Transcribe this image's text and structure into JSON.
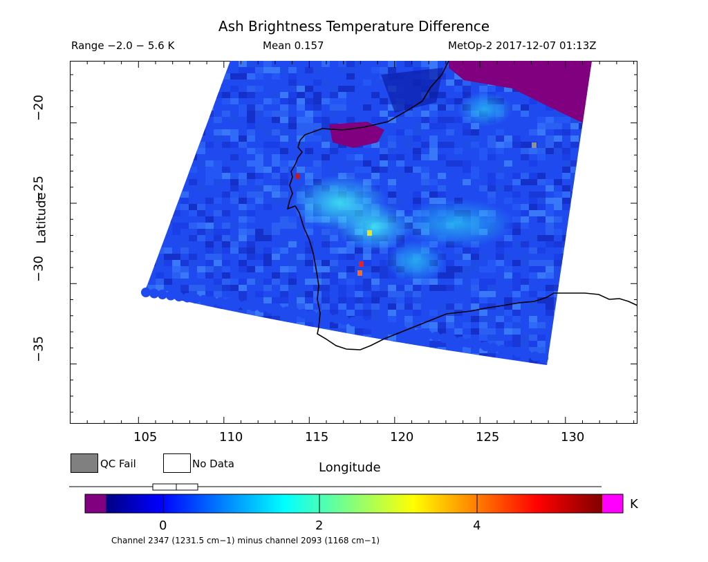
{
  "header": {
    "title": "Ash Brightness Temperature Difference",
    "range": "Range −2.0 − 5.6 K",
    "mean": "Mean 0.157",
    "satellite": "MetOp-2 2017-12-07 01:13Z"
  },
  "axes": {
    "x_title": "Longitude",
    "y_title": "Latitude",
    "x_ticks": [
      "105",
      "110",
      "115",
      "120",
      "125",
      "130"
    ],
    "y_ticks": [
      "−20",
      "−25",
      "−30",
      "−35"
    ]
  },
  "legend": {
    "qc_fail": "QC Fail",
    "no_data": "No Data"
  },
  "colorbar": {
    "ticks": [
      "0",
      "2",
      "4"
    ],
    "unit": "K",
    "caption": "Channel 2347 (1231.5 cm−1) minus channel 2093 (1168 cm−1)"
  },
  "colors": {
    "background": "#ffffff",
    "qc_fail": "#808080",
    "below_range": "#800080",
    "above_range": "#ff00ff",
    "coastline": "#000000"
  },
  "map_extent": {
    "lon_range": [
      101,
      134
    ],
    "lat_range": [
      -40,
      -17.3
    ]
  }
}
